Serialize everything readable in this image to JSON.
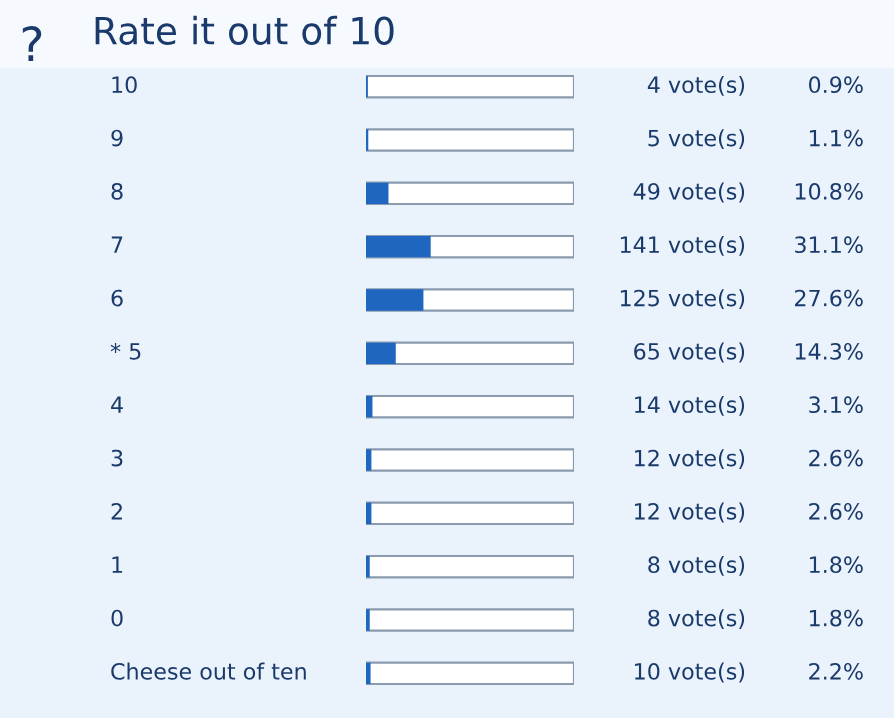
{
  "chart_data": {
    "type": "bar",
    "orientation": "horizontal",
    "title": "Rate it out of 10",
    "categories": [
      "10",
      "9",
      "8",
      "7",
      "6",
      "* 5",
      "4",
      "3",
      "2",
      "1",
      "0",
      "Cheese out of ten"
    ],
    "values": [
      0.9,
      1.1,
      10.8,
      31.1,
      27.6,
      14.3,
      3.1,
      2.6,
      2.6,
      1.8,
      1.8,
      2.2
    ],
    "value_labels": [
      "0.9%",
      "1.1%",
      "10.8%",
      "31.1%",
      "27.6%",
      "14.3%",
      "3.1%",
      "2.6%",
      "2.6%",
      "1.8%",
      "1.8%",
      "2.2%"
    ],
    "annotations": [
      "4 vote(s)",
      "5 vote(s)",
      "49 vote(s)",
      "141 vote(s)",
      "125 vote(s)",
      "65 vote(s)",
      "14 vote(s)",
      "12 vote(s)",
      "12 vote(s)",
      "8 vote(s)",
      "8 vote(s)",
      "10 vote(s)",
      "?"
    ],
    "color": "#1f66c1",
    "xlim": [
      0,
      100
    ],
    "tick_labels": "y"
  }
}
